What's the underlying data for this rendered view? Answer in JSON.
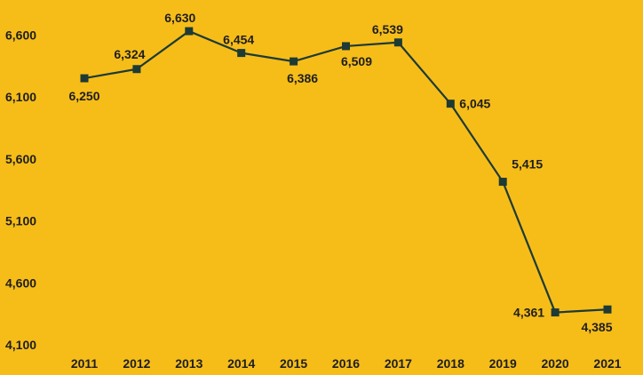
{
  "chart_data": {
    "type": "line",
    "title": "",
    "xlabel": "",
    "ylabel": "",
    "x": [
      "2011",
      "2012",
      "2013",
      "2014",
      "2015",
      "2016",
      "2017",
      "2018",
      "2019",
      "2020",
      "2021"
    ],
    "series": [
      {
        "values": [
          6250,
          6324,
          6630,
          6454,
          6386,
          6509,
          6539,
          6045,
          5415,
          4361,
          4385
        ],
        "labels": [
          "6,250",
          "6,324",
          "6,630",
          "6,454",
          "6,386",
          "6,509",
          "6,539",
          "6,045",
          "5,415",
          "4,361",
          "4,385"
        ]
      }
    ],
    "yticks": [
      4100,
      4600,
      5100,
      5600,
      6100,
      6600
    ],
    "ytick_labels": [
      "4,100",
      "4,600",
      "5,100",
      "5,600",
      "6,100",
      "6,600"
    ],
    "ylim": [
      4100,
      6750
    ],
    "grid": false,
    "legend": "none",
    "colors": {
      "background": "#F6BD19",
      "line": "#1E3A34",
      "text": "#1E1E1E"
    }
  }
}
